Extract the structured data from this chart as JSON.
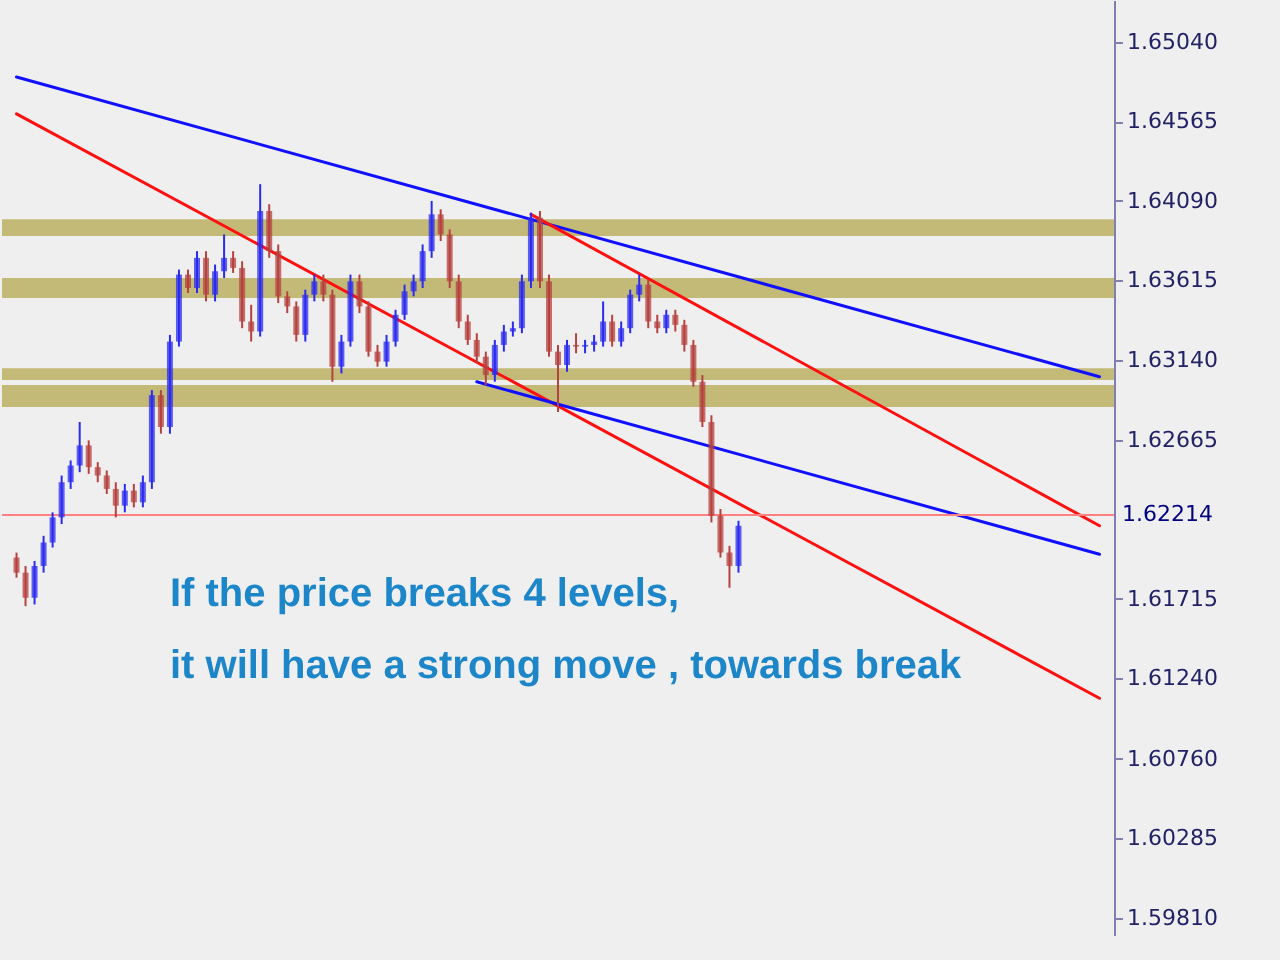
{
  "chart_data": {
    "type": "candlestick",
    "tick_labels": "y",
    "categories": [
      null,
      null,
      null,
      null,
      null,
      null,
      null,
      null,
      null,
      null,
      null,
      null,
      null,
      null,
      null,
      null,
      null,
      null,
      null,
      null,
      null,
      null,
      null,
      null,
      null,
      null,
      null,
      null,
      null,
      null,
      null,
      null,
      null,
      null,
      null,
      null,
      null,
      null,
      null,
      null,
      null,
      null,
      null,
      null,
      null,
      null,
      null,
      null,
      null,
      null,
      null,
      null,
      null,
      null,
      null,
      null,
      null,
      null,
      null,
      null,
      null,
      null,
      null,
      null,
      null,
      null,
      null,
      null,
      null,
      null,
      null,
      null,
      null,
      null,
      null,
      null,
      null,
      null,
      null,
      null,
      null,
      null,
      null,
      null,
      null,
      null,
      null,
      null,
      null,
      null,
      null,
      null,
      null,
      null,
      null,
      null,
      null,
      null,
      null,
      null,
      null,
      null,
      null,
      null,
      null,
      null,
      null,
      null,
      null,
      null,
      null,
      null,
      null,
      null,
      null,
      null,
      null,
      null,
      null,
      null,
      null
    ],
    "ohlc": [
      [
        1.6196,
        1.6199,
        1.6184,
        1.6187
      ],
      [
        1.6187,
        1.6191,
        1.6167,
        1.6172
      ],
      [
        1.6172,
        1.6194,
        1.6168,
        1.6191
      ],
      [
        1.6191,
        1.6209,
        1.6187,
        1.6205
      ],
      [
        1.6205,
        1.6223,
        1.6202,
        1.622
      ],
      [
        1.622,
        1.6245,
        1.6216,
        1.6241
      ],
      [
        1.6241,
        1.6254,
        1.6237,
        1.6251
      ],
      [
        1.6251,
        1.6277,
        1.6247,
        1.6263
      ],
      [
        1.6263,
        1.6266,
        1.6246,
        1.625
      ],
      [
        1.625,
        1.6253,
        1.6241,
        1.6245
      ],
      [
        1.6245,
        1.6248,
        1.6234,
        1.6237
      ],
      [
        1.6237,
        1.6241,
        1.622,
        1.6227
      ],
      [
        1.6227,
        1.624,
        1.6223,
        1.6236
      ],
      [
        1.6236,
        1.624,
        1.6226,
        1.6229
      ],
      [
        1.6229,
        1.6245,
        1.6226,
        1.6241
      ],
      [
        1.6241,
        1.6296,
        1.6237,
        1.6293
      ],
      [
        1.6293,
        1.6296,
        1.627,
        1.6274
      ],
      [
        1.6274,
        1.6329,
        1.627,
        1.6325
      ],
      [
        1.6325,
        1.6368,
        1.6322,
        1.6365
      ],
      [
        1.6365,
        1.6368,
        1.6354,
        1.6357
      ],
      [
        1.6357,
        1.6379,
        1.6354,
        1.6375
      ],
      [
        1.6375,
        1.6379,
        1.6349,
        1.6353
      ],
      [
        1.6353,
        1.6371,
        1.6349,
        1.6367
      ],
      [
        1.6367,
        1.6389,
        1.6363,
        1.6375
      ],
      [
        1.6375,
        1.6379,
        1.6366,
        1.6369
      ],
      [
        1.6369,
        1.6373,
        1.6333,
        1.6337
      ],
      [
        1.6337,
        1.6347,
        1.6325,
        1.6331
      ],
      [
        1.6331,
        1.6419,
        1.6328,
        1.6403
      ],
      [
        1.6403,
        1.6407,
        1.6375,
        1.6379
      ],
      [
        1.6379,
        1.6383,
        1.6348,
        1.6352
      ],
      [
        1.6352,
        1.6355,
        1.6342,
        1.6346
      ],
      [
        1.6346,
        1.6349,
        1.6325,
        1.6329
      ],
      [
        1.6329,
        1.6356,
        1.6325,
        1.6353
      ],
      [
        1.6353,
        1.6365,
        1.6349,
        1.6361
      ],
      [
        1.6361,
        1.6365,
        1.6349,
        1.6353
      ],
      [
        1.6353,
        1.6356,
        1.6301,
        1.631
      ],
      [
        1.631,
        1.6329,
        1.6306,
        1.6325
      ],
      [
        1.6325,
        1.6365,
        1.6322,
        1.6361
      ],
      [
        1.6361,
        1.6365,
        1.6342,
        1.6346
      ],
      [
        1.6346,
        1.6349,
        1.6316,
        1.6319
      ],
      [
        1.6319,
        1.6323,
        1.631,
        1.6313
      ],
      [
        1.6313,
        1.6329,
        1.631,
        1.6325
      ],
      [
        1.6325,
        1.6344,
        1.6322,
        1.6341
      ],
      [
        1.6341,
        1.6359,
        1.6338,
        1.6355
      ],
      [
        1.6355,
        1.6365,
        1.6352,
        1.6361
      ],
      [
        1.6361,
        1.6383,
        1.6357,
        1.6379
      ],
      [
        1.6379,
        1.6409,
        1.6375,
        1.6401
      ],
      [
        1.6401,
        1.6404,
        1.6385,
        1.6389
      ],
      [
        1.6389,
        1.6392,
        1.6357,
        1.6361
      ],
      [
        1.6361,
        1.6365,
        1.6333,
        1.6337
      ],
      [
        1.6337,
        1.6341,
        1.6323,
        1.6326
      ],
      [
        1.6326,
        1.633,
        1.6312,
        1.6316
      ],
      [
        1.6316,
        1.6319,
        1.6299,
        1.6305
      ],
      [
        1.6305,
        1.6326,
        1.6301,
        1.6323
      ],
      [
        1.6323,
        1.6335,
        1.6319,
        1.6331
      ],
      [
        1.6331,
        1.6337,
        1.6328,
        1.6333
      ],
      [
        1.6333,
        1.6365,
        1.633,
        1.6361
      ],
      [
        1.6361,
        1.6402,
        1.6357,
        1.6399
      ],
      [
        1.6399,
        1.6403,
        1.6357,
        1.6361
      ],
      [
        1.6361,
        1.6365,
        1.6316,
        1.6319
      ],
      [
        1.6319,
        1.6323,
        1.6283,
        1.6311
      ],
      [
        1.6311,
        1.6326,
        1.6307,
        1.6323
      ],
      [
        1.6323,
        1.633,
        1.6318,
        1.6322
      ],
      [
        1.6322,
        1.6326,
        1.6318,
        1.6323
      ],
      [
        1.6323,
        1.6329,
        1.6319,
        1.6325
      ],
      [
        1.6325,
        1.6349,
        1.6322,
        1.6337
      ],
      [
        1.6337,
        1.6341,
        1.6322,
        1.6325
      ],
      [
        1.6325,
        1.6337,
        1.6322,
        1.6333
      ],
      [
        1.6333,
        1.6356,
        1.633,
        1.6353
      ],
      [
        1.6353,
        1.6365,
        1.6349,
        1.6359
      ],
      [
        1.6359,
        1.6362,
        1.6333,
        1.6337
      ],
      [
        1.6337,
        1.6341,
        1.633,
        1.6333
      ],
      [
        1.6333,
        1.6344,
        1.633,
        1.6341
      ],
      [
        1.6341,
        1.6344,
        1.6331,
        1.6335
      ],
      [
        1.6335,
        1.6338,
        1.6319,
        1.6323
      ],
      [
        1.6323,
        1.6326,
        1.6298,
        1.6301
      ],
      [
        1.6301,
        1.6305,
        1.6274,
        1.6277
      ],
      [
        1.6277,
        1.6281,
        1.6217,
        1.6221
      ],
      [
        1.6221,
        1.6225,
        1.6196,
        1.6199
      ],
      [
        1.6199,
        1.6203,
        1.6178,
        1.6191
      ],
      [
        1.6191,
        1.6218,
        1.6187,
        1.6215
      ],
      null,
      null,
      null,
      null,
      null,
      null,
      null,
      null,
      null,
      null,
      null,
      null,
      null,
      null,
      null,
      null,
      null,
      null,
      null,
      null,
      null,
      null,
      null,
      null,
      null,
      null,
      null,
      null,
      null,
      null,
      null,
      null,
      null,
      null,
      null,
      null,
      null,
      null,
      null,
      null
    ],
    "colors": [
      "#b5423f",
      "#b5423f",
      "#2b2bf0",
      "#2b2bf0",
      "#2b2bf0",
      "#2b2bf0",
      "#2b2bf0",
      "#2b2bf0",
      "#b5423f",
      "#b5423f",
      "#b5423f",
      "#b5423f",
      "#2b2bf0",
      "#b5423f",
      "#2b2bf0",
      "#2b2bf0",
      "#b5423f",
      "#2b2bf0",
      "#2b2bf0",
      "#b5423f",
      "#2b2bf0",
      "#b5423f",
      "#2b2bf0",
      "#2b2bf0",
      "#b5423f",
      "#b5423f",
      "#b5423f",
      "#2b2bf0",
      "#b5423f",
      "#b5423f",
      "#b5423f",
      "#b5423f",
      "#2b2bf0",
      "#2b2bf0",
      "#b5423f",
      "#b5423f",
      "#2b2bf0",
      "#2b2bf0",
      "#b5423f",
      "#b5423f",
      "#b5423f",
      "#2b2bf0",
      "#2b2bf0",
      "#2b2bf0",
      "#2b2bf0",
      "#2b2bf0",
      "#2b2bf0",
      "#b5423f",
      "#b5423f",
      "#b5423f",
      "#b5423f",
      "#b5423f",
      "#b5423f",
      "#2b2bf0",
      "#2b2bf0",
      "#2b2bf0",
      "#2b2bf0",
      "#2b2bf0",
      "#b5423f",
      "#b5423f",
      "#b5423f",
      "#2b2bf0",
      "#b5423f",
      "#2b2bf0",
      "#2b2bf0",
      "#2b2bf0",
      "#b5423f",
      "#2b2bf0",
      "#2b2bf0",
      "#2b2bf0",
      "#b5423f",
      "#b5423f",
      "#2b2bf0",
      "#b5423f",
      "#b5423f",
      "#b5423f",
      "#b5423f",
      "#b5423f",
      "#b5423f",
      "#b5423f",
      "#2b2bf0",
      null,
      null,
      null,
      null,
      null,
      null,
      null,
      null,
      null,
      null,
      null,
      null,
      null,
      null,
      null,
      null,
      null,
      null,
      null,
      null,
      null,
      null,
      null,
      null,
      null,
      null,
      null,
      null,
      null,
      null,
      null,
      null,
      null,
      null,
      null,
      null,
      null,
      null,
      null,
      null
    ],
    "series": [
      {
        "type": "line",
        "color": "#1010ff",
        "values": [
          1.6483,
          null,
          null,
          null,
          null,
          null,
          null,
          null,
          null,
          null,
          null,
          null,
          null,
          null,
          null,
          null,
          null,
          null,
          null,
          null,
          null,
          null,
          null,
          null,
          null,
          null,
          null,
          null,
          null,
          null,
          null,
          null,
          null,
          null,
          null,
          null,
          null,
          null,
          null,
          null,
          null,
          null,
          null,
          null,
          null,
          null,
          null,
          null,
          null,
          null,
          null,
          null,
          null,
          null,
          null,
          null,
          null,
          null,
          null,
          null,
          null,
          null,
          null,
          null,
          null,
          null,
          null,
          null,
          null,
          null,
          null,
          null,
          null,
          null,
          null,
          null,
          null,
          null,
          null,
          null,
          null,
          null,
          null,
          null,
          null,
          null,
          null,
          null,
          null,
          null,
          null,
          null,
          null,
          null,
          null,
          null,
          null,
          null,
          null,
          null,
          null,
          null,
          null,
          null,
          null,
          null,
          null,
          null,
          null,
          null,
          null,
          null,
          null,
          null,
          null,
          null,
          null,
          null,
          null,
          null,
          1.6304
        ]
      },
      {
        "type": "line",
        "color": "#ff1010",
        "values": [
          1.6461,
          null,
          null,
          null,
          null,
          null,
          null,
          null,
          null,
          null,
          null,
          null,
          null,
          null,
          null,
          null,
          null,
          null,
          null,
          null,
          null,
          null,
          null,
          null,
          null,
          null,
          null,
          null,
          null,
          null,
          null,
          null,
          null,
          null,
          null,
          null,
          null,
          null,
          null,
          null,
          null,
          null,
          null,
          null,
          null,
          null,
          null,
          null,
          null,
          null,
          null,
          null,
          null,
          null,
          null,
          null,
          null,
          null,
          null,
          null,
          null,
          null,
          null,
          null,
          null,
          null,
          null,
          null,
          null,
          null,
          null,
          null,
          null,
          null,
          null,
          null,
          null,
          null,
          null,
          null,
          null,
          null,
          null,
          null,
          null,
          null,
          null,
          null,
          null,
          null,
          null,
          null,
          null,
          null,
          null,
          null,
          null,
          null,
          null,
          null,
          null,
          null,
          null,
          null,
          null,
          null,
          null,
          null,
          null,
          null,
          null,
          null,
          null,
          null,
          null,
          null,
          null,
          null,
          null,
          null,
          1.6112
        ]
      },
      {
        "type": "line",
        "color": "#ff1010",
        "values": [
          null,
          null,
          null,
          null,
          null,
          null,
          null,
          null,
          null,
          null,
          null,
          null,
          null,
          null,
          null,
          null,
          null,
          null,
          null,
          null,
          null,
          null,
          null,
          null,
          null,
          null,
          null,
          null,
          null,
          null,
          null,
          null,
          null,
          null,
          null,
          null,
          null,
          null,
          null,
          null,
          null,
          null,
          null,
          null,
          null,
          null,
          null,
          null,
          null,
          null,
          null,
          null,
          null,
          null,
          null,
          null,
          null,
          1.6401,
          null,
          null,
          null,
          null,
          null,
          null,
          null,
          null,
          null,
          null,
          null,
          null,
          null,
          null,
          null,
          null,
          null,
          null,
          null,
          null,
          null,
          null,
          null,
          null,
          null,
          null,
          null,
          null,
          null,
          null,
          null,
          null,
          null,
          null,
          null,
          null,
          null,
          null,
          null,
          null,
          null,
          null,
          null,
          null,
          null,
          null,
          null,
          null,
          null,
          null,
          null,
          null,
          null,
          null,
          null,
          null,
          null,
          null,
          null,
          null,
          null,
          null,
          1.6215
        ]
      },
      {
        "type": "line",
        "color": "#1010ff",
        "values": [
          null,
          null,
          null,
          null,
          null,
          null,
          null,
          null,
          null,
          null,
          null,
          null,
          null,
          null,
          null,
          null,
          null,
          null,
          null,
          null,
          null,
          null,
          null,
          null,
          null,
          null,
          null,
          null,
          null,
          null,
          null,
          null,
          null,
          null,
          null,
          null,
          null,
          null,
          null,
          null,
          null,
          null,
          null,
          null,
          null,
          null,
          null,
          null,
          null,
          null,
          null,
          1.6301,
          null,
          null,
          null,
          null,
          null,
          null,
          null,
          null,
          null,
          null,
          null,
          null,
          null,
          null,
          null,
          null,
          null,
          null,
          null,
          null,
          null,
          null,
          null,
          null,
          null,
          null,
          null,
          null,
          null,
          null,
          null,
          null,
          null,
          null,
          null,
          null,
          null,
          null,
          null,
          null,
          null,
          null,
          null,
          null,
          null,
          null,
          null,
          null,
          null,
          null,
          null,
          null,
          null,
          null,
          null,
          null,
          null,
          null,
          null,
          null,
          null,
          null,
          null,
          null,
          null,
          null,
          null,
          null,
          1.6198
        ]
      }
    ],
    "bands": [
      {
        "axis": "y",
        "from": 1.6388,
        "to": 1.6398,
        "color": "#bfb46a"
      },
      {
        "axis": "y",
        "from": 1.6351,
        "to": 1.6363,
        "color": "#bfb46a"
      },
      {
        "axis": "y",
        "from": 1.6302,
        "to": 1.6309,
        "color": "#bfb46a"
      },
      {
        "axis": "y",
        "from": 1.6286,
        "to": 1.6299,
        "color": "#bfb46a"
      }
    ],
    "ref_lines": [
      {
        "axis": "y",
        "value": 1.62214,
        "label": "1.62214",
        "color": "#ff8080"
      }
    ],
    "annotations": [
      "If the price breaks 4 levels,\n it will have a strong move , towards break"
    ],
    "ylim": [
      1.597,
      1.6529
    ],
    "yticks": [
      {
        "value": 1.6504,
        "label": "1.65040"
      },
      1.64565,
      {
        "value": 1.6409,
        "label": "1.64090"
      },
      1.63615,
      {
        "value": 1.6314,
        "label": "1.63140"
      },
      1.62665,
      1.61715,
      {
        "value": 1.6124,
        "label": "1.61240"
      },
      {
        "value": 1.6076,
        "label": "1.60760"
      },
      1.60285,
      {
        "value": 1.5981,
        "label": "1.59810"
      }
    ]
  }
}
